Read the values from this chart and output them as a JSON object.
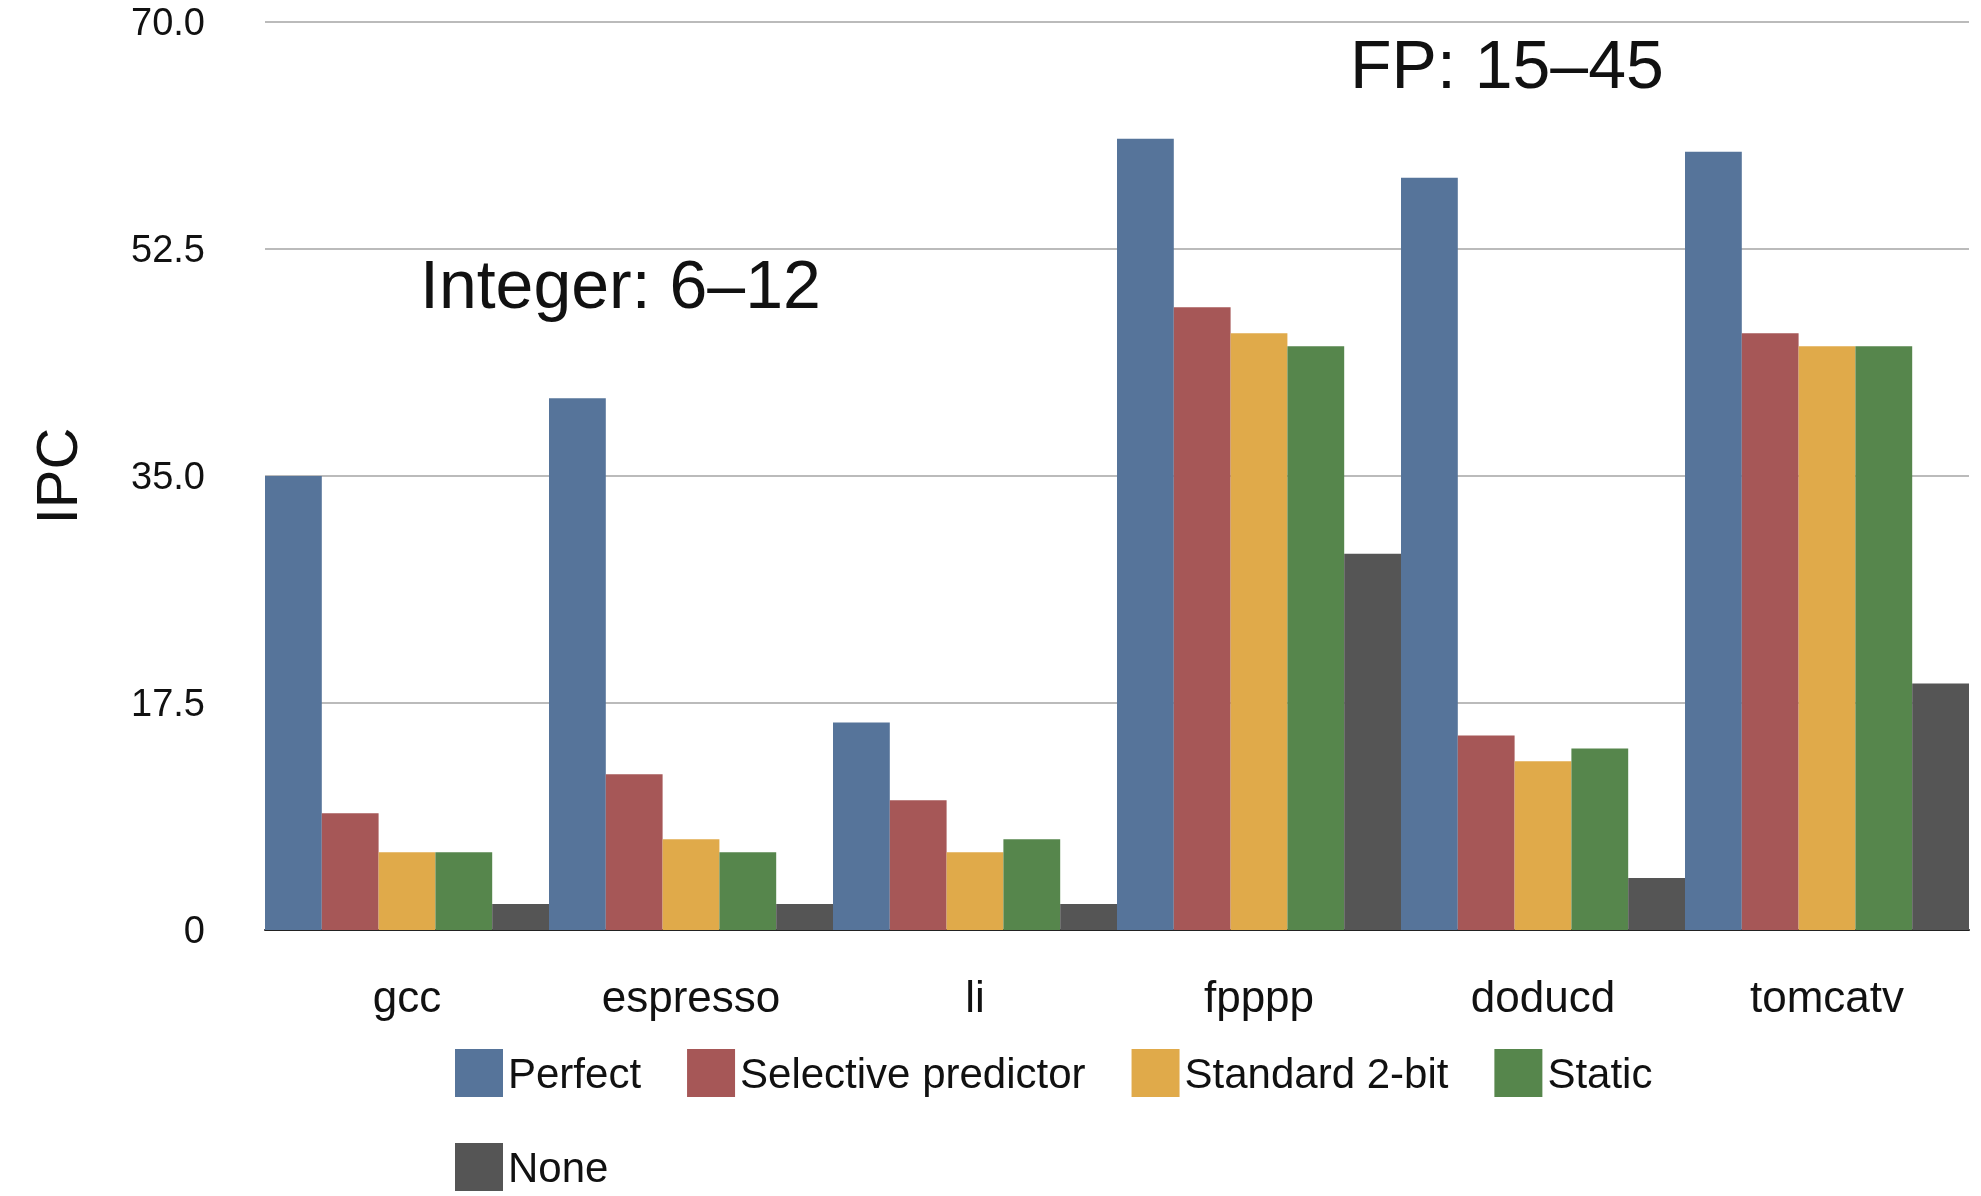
{
  "chart_data": {
    "type": "bar",
    "ylabel": "IPC",
    "categories": [
      "gcc",
      "espresso",
      "li",
      "fpppp",
      "doducd",
      "tomcatv"
    ],
    "series": [
      {
        "name": "Perfect",
        "color": "#56749a",
        "values": [
          35,
          41,
          16,
          61,
          58,
          60
        ]
      },
      {
        "name": "Selective predictor",
        "color": "#a65757",
        "values": [
          9,
          12,
          10,
          48,
          15,
          46
        ]
      },
      {
        "name": "Standard 2-bit",
        "color": "#e0aa4a",
        "values": [
          6,
          7,
          6,
          46,
          13,
          45
        ]
      },
      {
        "name": "Static",
        "color": "#56864c",
        "values": [
          6,
          6,
          7,
          45,
          14,
          45
        ]
      },
      {
        "name": "None",
        "color": "#555555",
        "values": [
          2,
          2,
          2,
          29,
          4,
          19
        ]
      }
    ],
    "ylim": [
      0,
      70
    ],
    "yticks": [
      0,
      17.5,
      {
        "value": 35,
        "label": "35.0"
      },
      52.5,
      {
        "value": 70,
        "label": "70.0"
      }
    ],
    "grid": "y",
    "legend": "bottom",
    "annotations": [
      "Integer: 6–12",
      "FP: 15–45"
    ]
  }
}
